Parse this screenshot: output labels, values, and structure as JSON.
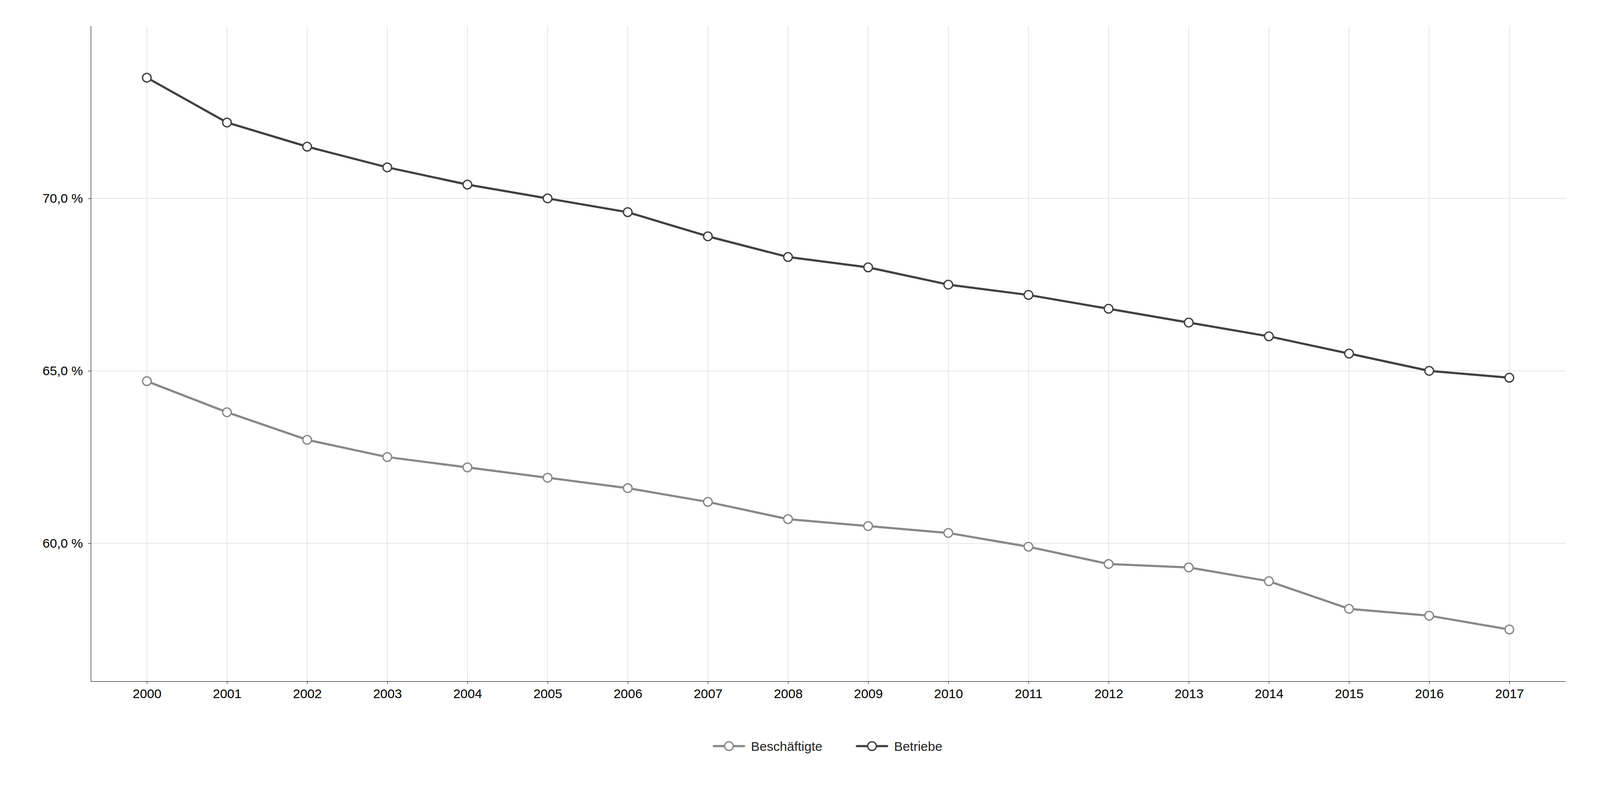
{
  "chart_data": {
    "type": "line",
    "x": [
      2000,
      2001,
      2002,
      2003,
      2004,
      2005,
      2006,
      2007,
      2008,
      2009,
      2010,
      2011,
      2012,
      2013,
      2014,
      2015,
      2016,
      2017
    ],
    "series": [
      {
        "name": "Betriebe",
        "color": "#404040",
        "marker": "circle",
        "values": [
          73.5,
          72.2,
          71.5,
          70.9,
          70.4,
          70.0,
          69.6,
          68.9,
          68.3,
          68.0,
          67.5,
          67.2,
          66.8,
          66.4,
          66.0,
          65.5,
          65.0,
          64.8
        ]
      },
      {
        "name": "Beschäftigte",
        "color": "#888888",
        "marker": "circle",
        "values": [
          64.7,
          63.8,
          63.0,
          62.5,
          62.2,
          61.9,
          61.6,
          61.2,
          60.7,
          60.5,
          60.3,
          59.9,
          59.4,
          59.3,
          58.9,
          58.1,
          57.9,
          57.5
        ]
      }
    ],
    "xlim": [
      1999.3,
      2017.7
    ],
    "xticks": [
      2000,
      2001,
      2002,
      2003,
      2004,
      2005,
      2006,
      2007,
      2008,
      2009,
      2010,
      2011,
      2012,
      2013,
      2014,
      2015,
      2016,
      2017
    ],
    "ylim": [
      56.0,
      75.0
    ],
    "yticks": [
      {
        "value": 60.0,
        "label": "60,0 %"
      },
      {
        "value": 65.0,
        "label": "65,0 %"
      },
      {
        "value": 70.0,
        "label": "70,0 %"
      }
    ],
    "grid": true
  }
}
